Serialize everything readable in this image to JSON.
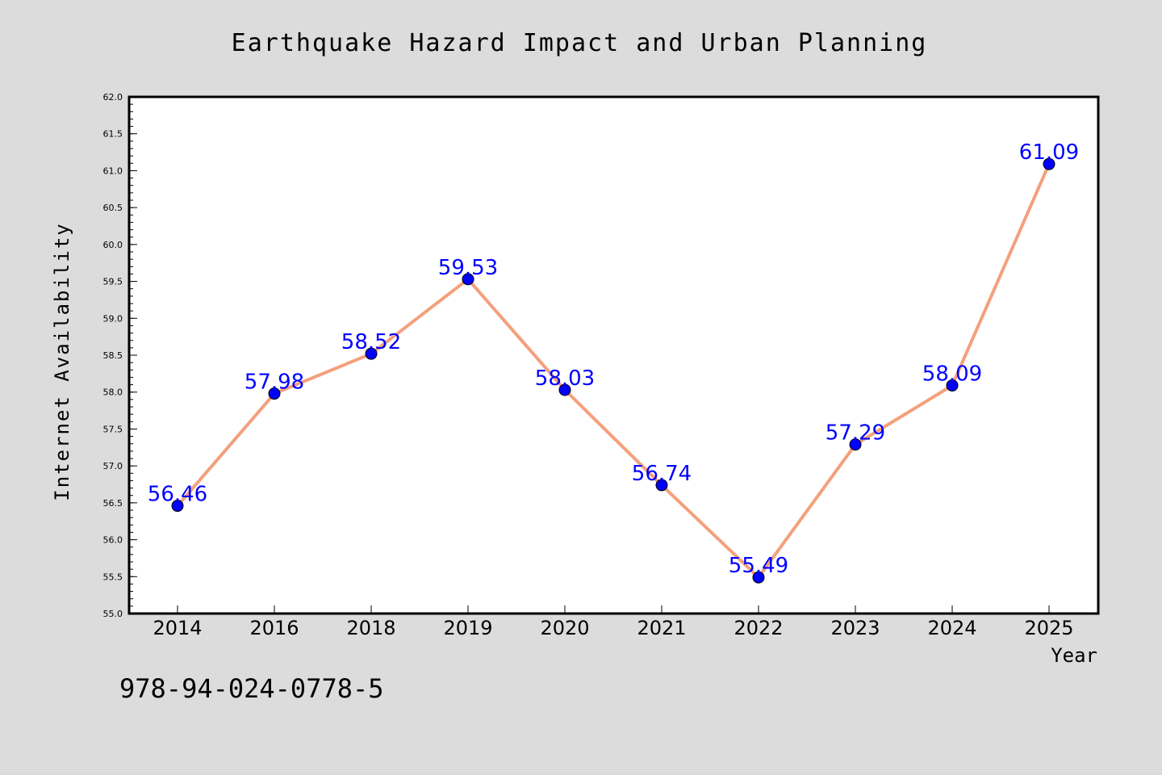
{
  "chart_data": {
    "type": "line",
    "title": "Earthquake Hazard Impact and Urban Planning",
    "xlabel": "Year",
    "ylabel": "Internet Availability",
    "categories": [
      "2014",
      "2016",
      "2018",
      "2019",
      "2020",
      "2021",
      "2022",
      "2023",
      "2024",
      "2025"
    ],
    "values": [
      56.46,
      57.98,
      58.52,
      59.53,
      58.03,
      56.74,
      55.49,
      57.29,
      58.09,
      61.09
    ],
    "data_labels": [
      "56.46",
      "57.98",
      "58.52",
      "59.53",
      "58.03",
      "56.74",
      "55.49",
      "57.29",
      "58.09",
      "61.09"
    ],
    "ylim": [
      55.0,
      62.0
    ],
    "yticks": [
      "55.0",
      "55.5",
      "56.0",
      "56.5",
      "57.0",
      "57.5",
      "58.0",
      "58.5",
      "59.0",
      "59.5",
      "60.0",
      "60.5",
      "61.0",
      "61.5",
      "62.0"
    ],
    "grid": false,
    "colors": {
      "line": "#f4a07c",
      "marker": "#0000ff",
      "label": "#0000ff",
      "background": "#dcdcdc",
      "plot": "#ffffff"
    }
  },
  "footer_text": "978-94-024-0778-5"
}
